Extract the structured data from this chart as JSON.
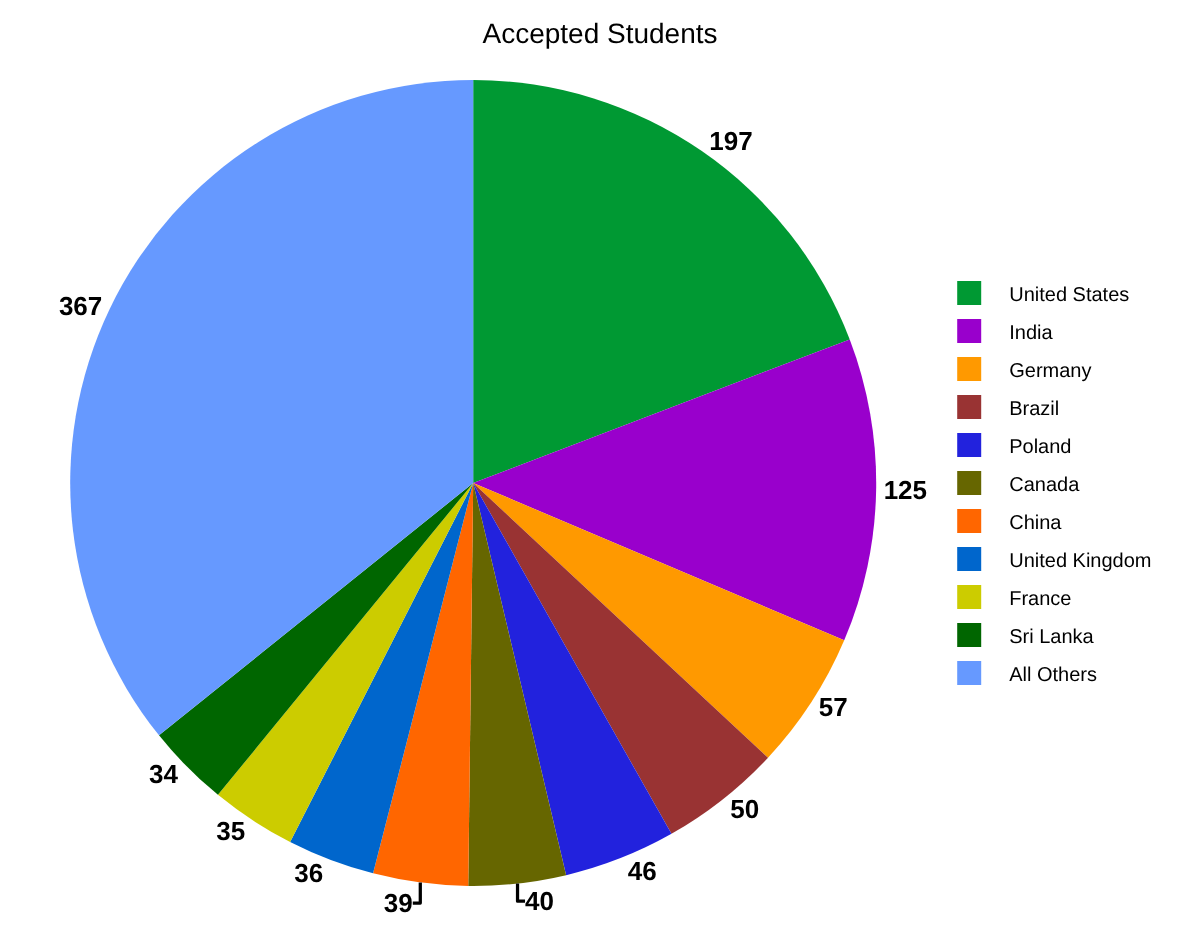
{
  "chart_data": {
    "type": "pie",
    "title": "Accepted Students",
    "categories": [
      "United States",
      "India",
      "Germany",
      "Brazil",
      "Poland",
      "Canada",
      "China",
      "United Kingdom",
      "France",
      "Sri Lanka",
      "All Others"
    ],
    "values": [
      197,
      125,
      57,
      50,
      46,
      40,
      39,
      36,
      35,
      34,
      367
    ],
    "colors": [
      "#009933",
      "#9900cc",
      "#ff9900",
      "#993333",
      "#2222dd",
      "#666600",
      "#ff6600",
      "#0066cc",
      "#cccc00",
      "#006600",
      "#6699ff"
    ],
    "data_labels": true,
    "legend": "right"
  }
}
